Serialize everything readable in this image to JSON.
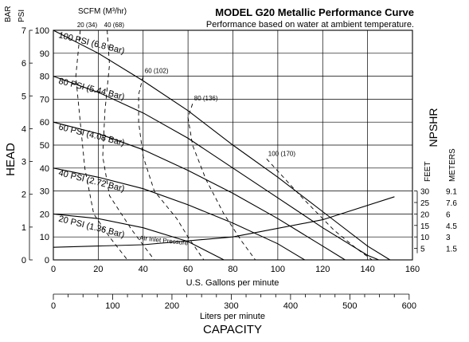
{
  "chart_data": {
    "type": "line",
    "title": "MODEL G20 Metallic Performance Curve",
    "subtitle": "Performance based on water at ambient temperature.",
    "head_axis_title": "HEAD",
    "psi_unit_label": "PSI",
    "bar_unit_label": "BAR",
    "x_gpm_label": "U.S. Gallons per minute",
    "x_lpm_label": "Liters per minute",
    "x_group_label": "CAPACITY",
    "scfm_label": "SCFM (M³/hr)",
    "npshr_label": "NPSHR",
    "feet_label": "FEET",
    "meters_label": "METERS",
    "air_inlet_label": "Air Inlet Pressure",
    "xlim": [
      0,
      160
    ],
    "ylim_psi": [
      0,
      100
    ],
    "ylim_bar": [
      0,
      7
    ],
    "x_ticks_gpm": [
      "0",
      "20",
      "40",
      "60",
      "80",
      "100",
      "120",
      "140",
      "160"
    ],
    "x_ticks_lpm": [
      "0",
      "100",
      "200",
      "300",
      "400",
      "500",
      "600"
    ],
    "y_ticks_psi": [
      "0",
      "10",
      "20",
      "30",
      "40",
      "50",
      "60",
      "70",
      "80",
      "90",
      "100"
    ],
    "y_ticks_bar": [
      "0",
      "1",
      "2",
      "3",
      "4",
      "5",
      "6",
      "7"
    ],
    "npshr_feet_ticks": [
      "5",
      "10",
      "15",
      "20",
      "25",
      "30"
    ],
    "npshr_meters_ticks": [
      "1.5",
      "3",
      "4.5",
      "6",
      "7.6",
      "9.1"
    ],
    "series": [
      {
        "name": "100 PSI (6.8 Bar)",
        "label": "100 PSI (6.8 Bar)",
        "x": [
          0,
          20,
          40,
          60,
          80,
          100,
          120,
          140,
          150
        ],
        "y": [
          100,
          90,
          78,
          65,
          50,
          36,
          21,
          6,
          0
        ]
      },
      {
        "name": "80 PSI (5.44 Bar)",
        "label": "80 PSI (5.44 Bar)",
        "x": [
          0,
          20,
          40,
          60,
          80,
          100,
          120,
          140,
          145
        ],
        "y": [
          80,
          73,
          64,
          53,
          40,
          27,
          14,
          2,
          0
        ]
      },
      {
        "name": "60 PSI (4.08 Bar)",
        "label": "60 PSI (4.08 Bar)",
        "x": [
          0,
          20,
          40,
          60,
          80,
          100,
          120,
          130
        ],
        "y": [
          60,
          55,
          48,
          39,
          29,
          18,
          6,
          0
        ]
      },
      {
        "name": "40 PSI (2.72 Bar)",
        "label": "40 PSI (2.72 Bar)",
        "x": [
          0,
          20,
          40,
          60,
          80,
          100,
          112
        ],
        "y": [
          40,
          36,
          31,
          24,
          16,
          7,
          0
        ]
      },
      {
        "name": "20 PSI (1.36 Bar)",
        "label": "20 PSI (1.36 Bar)",
        "x": [
          0,
          20,
          40,
          60,
          76
        ],
        "y": [
          20,
          18,
          14,
          8,
          0
        ]
      }
    ],
    "air_consumption_curves": [
      {
        "label": "20 (34)",
        "x": [
          12,
          10,
          12,
          14,
          18,
          25,
          33
        ],
        "y": [
          100,
          80,
          60,
          40,
          20,
          10,
          0
        ]
      },
      {
        "label": "40 (68)",
        "x": [
          24,
          25,
          23,
          22,
          25,
          35,
          45
        ],
        "y": [
          100,
          85,
          65,
          45,
          28,
          13,
          0
        ]
      },
      {
        "label": "60 (102)",
        "x": [
          40,
          38,
          38,
          40,
          45,
          55,
          60,
          67
        ],
        "y": [
          80,
          72,
          60,
          45,
          30,
          18,
          10,
          0
        ]
      },
      {
        "label": "80 (136)",
        "x": [
          62,
          60,
          62,
          68,
          76,
          84,
          90
        ],
        "y": [
          68,
          62,
          50,
          35,
          20,
          8,
          0
        ]
      },
      {
        "label": "100 (170)",
        "x": [
          95,
          110,
          125,
          135,
          142
        ],
        "y": [
          44,
          28,
          13,
          5,
          0
        ]
      }
    ],
    "npshr_curve": {
      "x": [
        0,
        40,
        80,
        120,
        152
      ],
      "y": [
        5.5,
        6.6,
        10.0,
        17.5,
        27.5
      ]
    }
  }
}
